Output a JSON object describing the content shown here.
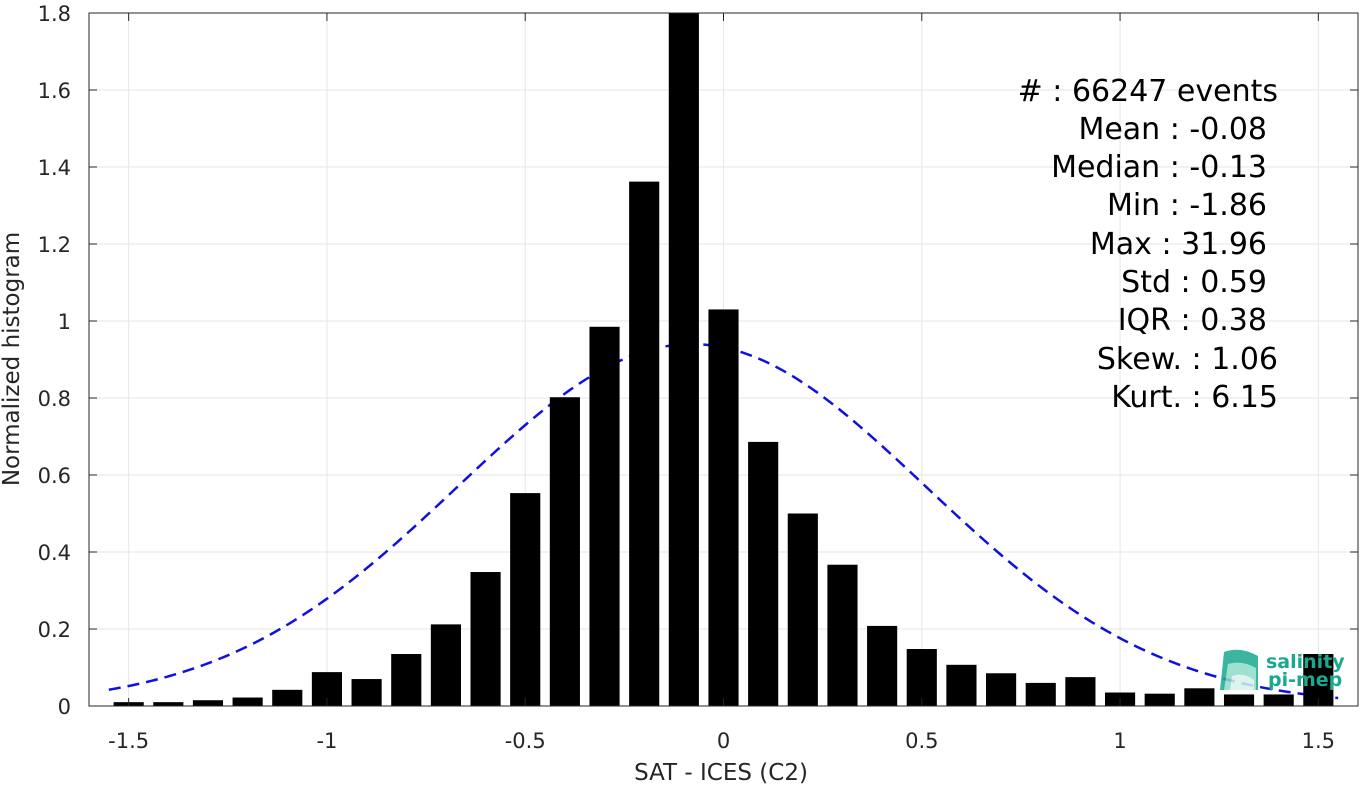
{
  "chart_data": {
    "type": "bar",
    "xlabel": "SAT - ICES (C2)",
    "ylabel": "Normalized histogram",
    "xlim": [
      -1.6,
      1.6
    ],
    "ylim": [
      0,
      1.8
    ],
    "grid": true,
    "xticks": [
      -1.5,
      -1,
      -0.5,
      0,
      0.5,
      1,
      1.5
    ],
    "xtick_labels": [
      "-1.5",
      "-1",
      "-0.5",
      "0",
      "0.5",
      "1",
      "1.5"
    ],
    "yticks": [
      0,
      0.2,
      0.4,
      0.6,
      0.8,
      1,
      1.2,
      1.4,
      1.6,
      1.8
    ],
    "ytick_labels": [
      "0",
      "0.2",
      "0.4",
      "0.6",
      "0.8",
      "1",
      "1.2",
      "1.4",
      "1.6",
      "1.8"
    ],
    "bar_color": "#000000",
    "bars": {
      "x": [
        -1.5,
        -1.4,
        -1.3,
        -1.2,
        -1.1,
        -1.0,
        -0.9,
        -0.8,
        -0.7,
        -0.6,
        -0.5,
        -0.4,
        -0.3,
        -0.2,
        -0.1,
        0.0,
        0.1,
        0.2,
        0.3,
        0.4,
        0.5,
        0.6,
        0.7,
        0.8,
        0.9,
        1.0,
        1.1,
        1.2,
        1.3,
        1.4,
        1.5
      ],
      "values": [
        0.01,
        0.01,
        0.015,
        0.022,
        0.042,
        0.088,
        0.07,
        0.135,
        0.212,
        0.348,
        0.553,
        0.802,
        0.985,
        1.362,
        1.8,
        1.03,
        0.686,
        0.5,
        0.367,
        0.208,
        0.148,
        0.107,
        0.085,
        0.06,
        0.075,
        0.035,
        0.032,
        0.046,
        0.03,
        0.03,
        0.135
      ]
    },
    "fit_curve": {
      "style": "dashed",
      "color": "#1010e0",
      "mean": -0.08,
      "std": 0.59,
      "peak": 0.94
    },
    "annotation_lines": [
      "#  : 66247 events",
      "Mean : -0.08",
      "Median : -0.13",
      "Min : -1.86",
      "Max : 31.96",
      "Std : 0.59",
      "IQR : 0.38",
      "Skew. : 1.06",
      "Kurt. : 6.15"
    ]
  },
  "logo": {
    "line1": "salinity",
    "line2": "pi-mep",
    "color": "#1aa98f"
  }
}
